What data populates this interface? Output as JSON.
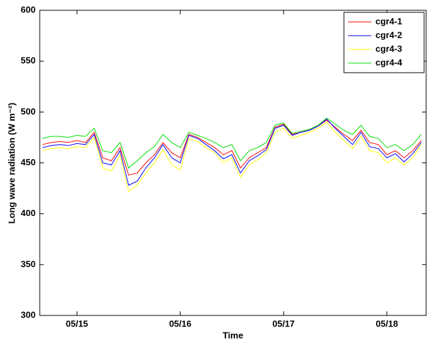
{
  "chart_data": {
    "type": "line",
    "xlabel": "Time",
    "ylabel": "Long wave radiation (W m⁻²)",
    "x": [
      14.667,
      14.75,
      14.833,
      14.917,
      15.0,
      15.083,
      15.167,
      15.25,
      15.333,
      15.417,
      15.5,
      15.583,
      15.667,
      15.75,
      15.833,
      15.917,
      16.0,
      16.083,
      16.167,
      16.25,
      16.333,
      16.417,
      16.5,
      16.583,
      16.667,
      16.75,
      16.833,
      16.917,
      17.0,
      17.083,
      17.167,
      17.25,
      17.333,
      17.417,
      17.5,
      17.583,
      17.667,
      17.75,
      17.833,
      17.917,
      18.0,
      18.083,
      18.167,
      18.25,
      18.333
    ],
    "series": [
      {
        "name": "cgr4-1",
        "color": "#ff0000",
        "values": [
          468,
          470,
          471,
          470,
          472,
          470,
          480,
          455,
          452,
          465,
          438,
          440,
          450,
          458,
          470,
          460,
          455,
          478,
          475,
          470,
          465,
          458,
          462,
          445,
          455,
          460,
          465,
          485,
          488,
          478,
          480,
          482,
          486,
          492,
          485,
          478,
          472,
          482,
          470,
          468,
          458,
          462,
          455,
          462,
          472
        ]
      },
      {
        "name": "cgr4-2",
        "color": "#0000ff",
        "values": [
          465,
          467,
          468,
          467,
          469,
          468,
          478,
          450,
          448,
          462,
          428,
          432,
          445,
          455,
          468,
          455,
          450,
          477,
          474,
          468,
          462,
          454,
          458,
          440,
          452,
          457,
          463,
          484,
          487,
          477,
          480,
          482,
          486,
          493,
          484,
          476,
          468,
          480,
          466,
          464,
          455,
          459,
          451,
          459,
          470
        ]
      },
      {
        "name": "cgr4-3",
        "color": "#ffff00",
        "values": [
          462,
          464,
          465,
          464,
          466,
          465,
          475,
          445,
          442,
          458,
          422,
          428,
          440,
          450,
          463,
          448,
          443,
          474,
          471,
          465,
          460,
          450,
          455,
          436,
          448,
          453,
          460,
          480,
          484,
          474,
          477,
          480,
          484,
          490,
          480,
          472,
          464,
          476,
          462,
          460,
          450,
          455,
          448,
          455,
          468
        ]
      },
      {
        "name": "cgr4-4",
        "color": "#00dd00",
        "values": [
          474,
          476,
          476,
          475,
          477,
          476,
          484,
          462,
          460,
          470,
          445,
          452,
          460,
          466,
          478,
          470,
          465,
          480,
          477,
          474,
          470,
          465,
          468,
          452,
          462,
          465,
          470,
          487,
          489,
          479,
          481,
          483,
          487,
          494,
          488,
          482,
          478,
          487,
          476,
          474,
          465,
          468,
          462,
          468,
          478
        ]
      }
    ],
    "xlim": [
      14.64,
      18.38
    ],
    "xticks": [
      {
        "value": 15,
        "label": "05/15"
      },
      {
        "value": 16,
        "label": "05/16"
      },
      {
        "value": 17,
        "label": "05/17"
      },
      {
        "value": 18,
        "label": "05/18"
      }
    ],
    "ylim": [
      300,
      600
    ],
    "yticks": [
      300,
      350,
      400,
      450,
      500,
      550,
      600
    ],
    "grid": false,
    "legend": "upper right"
  }
}
